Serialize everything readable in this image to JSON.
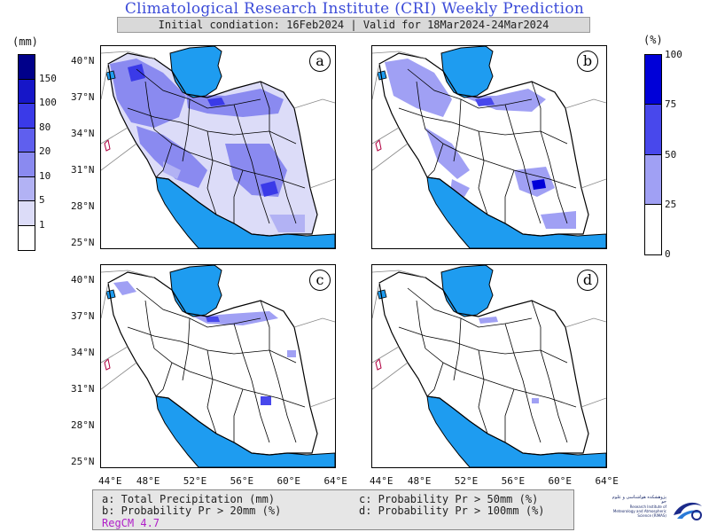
{
  "header": {
    "title": "Climatological Research Institute (CRI) Weekly Prediction",
    "subtitle": "Initial condiation: 16Feb2024 | Valid for 18Mar2024-24Mar2024"
  },
  "colorbars": {
    "left": {
      "unit": "(mm)",
      "labels": [
        "150",
        "100",
        "80",
        "20",
        "10",
        "5",
        "1"
      ],
      "colors": [
        "#00008a",
        "#1616c8",
        "#3a3ae8",
        "#5f5fee",
        "#8a8af0",
        "#b2b2f4",
        "#dcdcf8",
        "#ffffff"
      ]
    },
    "right": {
      "unit": "(%)",
      "labels": [
        "100",
        "75",
        "50",
        "25",
        "0"
      ],
      "colors": [
        "#0000d8",
        "#4848ec",
        "#a0a0f4",
        "#ffffff"
      ]
    }
  },
  "map": {
    "lat_labels": [
      "40°N",
      "37°N",
      "34°N",
      "31°N",
      "28°N",
      "25°N"
    ],
    "lon_labels": [
      "44°E",
      "48°E",
      "52°E",
      "56°E",
      "60°E",
      "64°E"
    ],
    "sea_color": "#1e9cf0",
    "panels": [
      {
        "label": "a"
      },
      {
        "label": "b"
      },
      {
        "label": "c"
      },
      {
        "label": "d"
      }
    ]
  },
  "legend": {
    "a": "a: Total Precipitation (mm)",
    "b": "b: Probability Pr > 20mm (%)",
    "c": "c: Probability Pr > 50mm (%)",
    "d": "d: Probability Pr > 100mm (%)",
    "model": "RegCM 4.7"
  },
  "logo": {
    "text_fa": "پژوهشکده هواشناسی و علوم جو",
    "text_en": "Research Institute of Meteorology and Atmospheric Science (RIMAS)"
  }
}
